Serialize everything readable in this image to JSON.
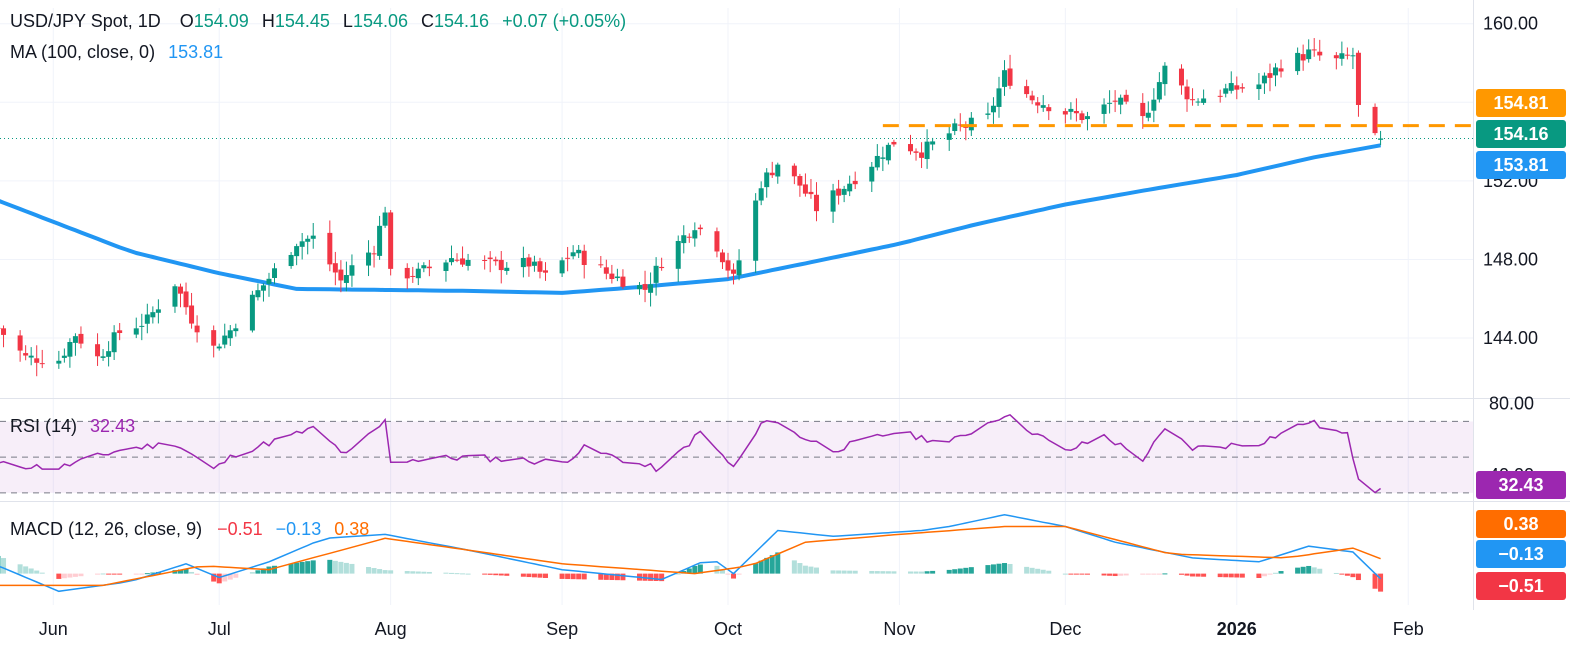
{
  "header": {
    "symbol": "USD/JPY Spot, 1D",
    "o_label": "O",
    "open": "154.09",
    "h_label": "H",
    "high": "154.45",
    "l_label": "L",
    "low": "154.06",
    "c_label": "C",
    "close": "154.16",
    "change": "+0.07 (+0.05%)"
  },
  "ma_legend": {
    "label": "MA (100, close, 0)",
    "value": "153.81"
  },
  "rsi_legend": {
    "label": "RSI (14)",
    "value": "32.43"
  },
  "macd_legend": {
    "label": "MACD (12, 26, close, 9)",
    "hist": "−0.51",
    "macd": "−0.13",
    "signal": "0.38"
  },
  "badges": {
    "resistance": "154.81",
    "price": "154.16",
    "ma": "153.81",
    "rsi": "32.43",
    "signal": "0.38",
    "macd": "−0.13",
    "hist": "−0.51"
  },
  "colors": {
    "up": "#089981",
    "down": "#f23645",
    "ma": "#2196f3",
    "rsi": "#9c27b0",
    "signal": "#ff6d00",
    "resistance": "#ff9800"
  },
  "chart_data": [
    {
      "type": "candlestick",
      "title": "USD/JPY Spot, 1D",
      "x_range": [
        "2025-05-22",
        "2026-02-10"
      ],
      "ylim": [
        141.0,
        160.8
      ],
      "y_ticks": [
        "160.00",
        "152.00",
        "148.00",
        "144.00"
      ],
      "x_labels": [
        {
          "date": "2025-06-01",
          "label": "Jun"
        },
        {
          "date": "2025-07-01",
          "label": "Jul"
        },
        {
          "date": "2025-08-01",
          "label": "Aug"
        },
        {
          "date": "2025-09-01",
          "label": "Sep"
        },
        {
          "date": "2025-10-01",
          "label": "Oct"
        },
        {
          "date": "2025-11-01",
          "label": "Nov"
        },
        {
          "date": "2025-12-01",
          "label": "Dec"
        },
        {
          "date": "2026-01-01",
          "label": "2026"
        },
        {
          "date": "2026-02-01",
          "label": "Feb"
        }
      ],
      "close_anchors": [
        [
          "2025-05-22",
          144.5
        ],
        [
          "2025-05-27",
          143.0
        ],
        [
          "2025-06-02",
          142.9
        ],
        [
          "2025-06-05",
          144.2
        ],
        [
          "2025-06-09",
          143.0
        ],
        [
          "2025-06-13",
          144.3
        ],
        [
          "2025-06-18",
          144.9
        ],
        [
          "2025-06-23",
          146.8
        ],
        [
          "2025-06-26",
          145.0
        ],
        [
          "2025-06-30",
          143.5
        ],
        [
          "2025-07-03",
          144.4
        ],
        [
          "2025-07-07",
          146.0
        ],
        [
          "2025-07-11",
          147.4
        ],
        [
          "2025-07-15",
          148.9
        ],
        [
          "2025-07-18",
          149.1
        ],
        [
          "2025-07-23",
          146.9
        ],
        [
          "2025-07-25",
          147.6
        ],
        [
          "2025-07-29",
          148.6
        ],
        [
          "2025-07-31",
          150.6
        ],
        [
          "2025-08-01",
          147.2
        ],
        [
          "2025-08-06",
          147.3
        ],
        [
          "2025-08-12",
          148.1
        ],
        [
          "2025-08-20",
          147.7
        ],
        [
          "2025-08-26",
          147.8
        ],
        [
          "2025-08-29",
          147.1
        ],
        [
          "2025-09-03",
          148.4
        ],
        [
          "2025-09-09",
          147.3
        ],
        [
          "2025-09-16",
          146.5
        ],
        [
          "2025-09-19",
          147.9
        ],
        [
          "2025-09-25",
          149.8
        ],
        [
          "2025-09-29",
          148.7
        ],
        [
          "2025-10-02",
          147.0
        ],
        [
          "2025-10-07",
          151.9
        ],
        [
          "2025-10-10",
          152.9
        ],
        [
          "2025-10-14",
          151.8
        ],
        [
          "2025-10-17",
          150.6
        ],
        [
          "2025-10-22",
          151.7
        ],
        [
          "2025-10-27",
          152.9
        ],
        [
          "2025-10-31",
          154.0
        ],
        [
          "2025-11-05",
          153.5
        ],
        [
          "2025-11-11",
          154.6
        ],
        [
          "2025-11-17",
          155.2
        ],
        [
          "2025-11-20",
          157.4
        ],
        [
          "2025-11-25",
          156.2
        ],
        [
          "2025-12-01",
          155.5
        ],
        [
          "2025-12-05",
          155.2
        ],
        [
          "2025-12-10",
          156.1
        ],
        [
          "2025-12-15",
          155.1
        ],
        [
          "2025-12-19",
          157.7
        ],
        [
          "2025-12-24",
          156.1
        ],
        [
          "2025-12-30",
          156.6
        ],
        [
          "2026-01-05",
          156.9
        ],
        [
          "2026-01-09",
          157.9
        ],
        [
          "2026-01-14",
          158.5
        ],
        [
          "2026-01-19",
          158.1
        ],
        [
          "2026-01-22",
          158.4
        ],
        [
          "2026-01-23",
          155.7
        ],
        [
          "2026-01-26",
          154.1
        ],
        [
          "2026-01-27",
          154.16
        ]
      ],
      "ma100_anchors": [
        [
          "2025-05-22",
          151.0
        ],
        [
          "2025-06-15",
          148.4
        ],
        [
          "2025-07-01",
          147.3
        ],
        [
          "2025-07-15",
          146.5
        ],
        [
          "2025-08-15",
          146.4
        ],
        [
          "2025-09-01",
          146.3
        ],
        [
          "2025-09-15",
          146.6
        ],
        [
          "2025-10-01",
          147.0
        ],
        [
          "2025-10-15",
          147.8
        ],
        [
          "2025-11-01",
          148.8
        ],
        [
          "2025-11-15",
          149.8
        ],
        [
          "2025-12-01",
          150.8
        ],
        [
          "2025-12-15",
          151.5
        ],
        [
          "2026-01-01",
          152.3
        ],
        [
          "2026-01-15",
          153.2
        ],
        [
          "2026-01-27",
          153.81
        ]
      ],
      "resistance_level": 154.81,
      "resistance_from": "2025-10-29",
      "last_price": 154.16,
      "ma_last": 153.81
    },
    {
      "type": "line",
      "title": "RSI (14)",
      "ylim": [
        26,
        82
      ],
      "levels": [
        70,
        50,
        30
      ],
      "y_ticks": [
        "80.00",
        "40.00"
      ],
      "anchors": [
        [
          "2025-05-22",
          46
        ],
        [
          "2025-06-02",
          44
        ],
        [
          "2025-06-13",
          54
        ],
        [
          "2025-06-23",
          58
        ],
        [
          "2025-06-30",
          43
        ],
        [
          "2025-07-04",
          52
        ],
        [
          "2025-07-15",
          63
        ],
        [
          "2025-07-18",
          66
        ],
        [
          "2025-07-24",
          51
        ],
        [
          "2025-07-31",
          70
        ],
        [
          "2025-08-01",
          48
        ],
        [
          "2025-08-15",
          50
        ],
        [
          "2025-09-01",
          47
        ],
        [
          "2025-09-05",
          55
        ],
        [
          "2025-09-16",
          45
        ],
        [
          "2025-09-19",
          43
        ],
        [
          "2025-09-26",
          64
        ],
        [
          "2025-10-02",
          44
        ],
        [
          "2025-10-08",
          72
        ],
        [
          "2025-10-14",
          62
        ],
        [
          "2025-10-20",
          54
        ],
        [
          "2025-10-31",
          64
        ],
        [
          "2025-11-10",
          58
        ],
        [
          "2025-11-20",
          74
        ],
        [
          "2025-12-01",
          53
        ],
        [
          "2025-12-08",
          62
        ],
        [
          "2025-12-15",
          49
        ],
        [
          "2025-12-19",
          65
        ],
        [
          "2025-12-24",
          55
        ],
        [
          "2026-01-05",
          58
        ],
        [
          "2026-01-14",
          70
        ],
        [
          "2026-01-21",
          62
        ],
        [
          "2026-01-23",
          39
        ],
        [
          "2026-01-26",
          32
        ],
        [
          "2026-01-27",
          32.43
        ]
      ],
      "last": 32.43
    },
    {
      "type": "line",
      "title": "MACD (12, 26, close, 9)",
      "ylim": [
        -0.8,
        1.8
      ],
      "series": [
        {
          "name": "MACD",
          "anchors": [
            [
              "2025-05-22",
              0.2
            ],
            [
              "2025-06-02",
              -0.45
            ],
            [
              "2025-06-15",
              -0.2
            ],
            [
              "2025-06-25",
              0.25
            ],
            [
              "2025-07-01",
              -0.1
            ],
            [
              "2025-07-10",
              0.3
            ],
            [
              "2025-07-20",
              0.9
            ],
            [
              "2025-07-31",
              1.0
            ],
            [
              "2025-08-15",
              0.6
            ],
            [
              "2025-09-01",
              0.1
            ],
            [
              "2025-09-19",
              -0.15
            ],
            [
              "2025-09-28",
              0.4
            ],
            [
              "2025-10-02",
              0.0
            ],
            [
              "2025-10-10",
              1.1
            ],
            [
              "2025-10-20",
              0.95
            ],
            [
              "2025-11-05",
              1.1
            ],
            [
              "2025-11-10",
              1.2
            ],
            [
              "2025-11-20",
              1.5
            ],
            [
              "2025-12-01",
              1.2
            ],
            [
              "2025-12-10",
              0.8
            ],
            [
              "2025-12-24",
              0.4
            ],
            [
              "2026-01-05",
              0.3
            ],
            [
              "2026-01-14",
              0.7
            ],
            [
              "2026-01-22",
              0.55
            ],
            [
              "2026-01-27",
              -0.13
            ]
          ]
        },
        {
          "name": "Signal",
          "anchors": [
            [
              "2025-05-22",
              -0.3
            ],
            [
              "2025-06-10",
              -0.3
            ],
            [
              "2025-06-28",
              0.2
            ],
            [
              "2025-07-10",
              0.1
            ],
            [
              "2025-07-31",
              0.9
            ],
            [
              "2025-08-15",
              0.6
            ],
            [
              "2025-09-01",
              0.25
            ],
            [
              "2025-09-25",
              0.0
            ],
            [
              "2025-10-05",
              0.2
            ],
            [
              "2025-10-15",
              0.8
            ],
            [
              "2025-11-01",
              1.0
            ],
            [
              "2025-11-20",
              1.2
            ],
            [
              "2025-12-01",
              1.2
            ],
            [
              "2025-12-20",
              0.5
            ],
            [
              "2026-01-10",
              0.4
            ],
            [
              "2026-01-22",
              0.65
            ],
            [
              "2026-01-27",
              0.38
            ]
          ]
        }
      ],
      "last_hist": -0.51,
      "last_macd": -0.13,
      "last_signal": 0.38
    }
  ]
}
